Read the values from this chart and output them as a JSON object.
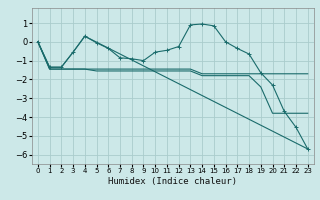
{
  "xlabel": "Humidex (Indice chaleur)",
  "bg_color": "#cce8e8",
  "grid_color": "#aacccc",
  "line_color": "#1a6b6b",
  "xlim": [
    -0.5,
    23.5
  ],
  "ylim": [
    -6.5,
    1.8
  ],
  "xticks": [
    0,
    1,
    2,
    3,
    4,
    5,
    6,
    7,
    8,
    9,
    10,
    11,
    12,
    13,
    14,
    15,
    16,
    17,
    18,
    19,
    20,
    21,
    22,
    23
  ],
  "yticks": [
    -6,
    -5,
    -4,
    -3,
    -2,
    -1,
    0,
    1
  ],
  "series": [
    {
      "x": [
        0,
        1,
        2,
        3,
        4,
        5,
        6,
        7,
        8,
        9,
        10,
        11,
        12,
        13,
        14,
        15,
        16,
        17,
        18,
        19,
        20,
        21,
        22,
        23
      ],
      "y": [
        0.0,
        -1.35,
        -1.35,
        -0.55,
        0.3,
        -0.05,
        -0.35,
        -0.85,
        -0.9,
        -1.0,
        -0.55,
        -0.45,
        -0.25,
        0.9,
        0.95,
        0.85,
        0.0,
        -0.35,
        -0.65,
        -1.65,
        -2.3,
        -3.7,
        -4.55,
        -5.7
      ],
      "marker": true
    },
    {
      "x": [
        0,
        1,
        2,
        3,
        4,
        23
      ],
      "y": [
        0.0,
        -1.35,
        -1.35,
        -0.55,
        0.3,
        -5.7
      ],
      "marker": false
    },
    {
      "x": [
        0,
        1,
        2,
        3,
        4,
        5,
        6,
        7,
        8,
        9,
        10,
        11,
        12,
        13,
        14,
        15,
        16,
        17,
        18,
        19,
        20,
        21,
        22,
        23
      ],
      "y": [
        0.0,
        -1.45,
        -1.45,
        -1.45,
        -1.45,
        -1.45,
        -1.45,
        -1.45,
        -1.45,
        -1.45,
        -1.45,
        -1.45,
        -1.45,
        -1.45,
        -1.7,
        -1.7,
        -1.7,
        -1.7,
        -1.7,
        -1.7,
        -1.7,
        -1.7,
        -1.7,
        -1.7
      ],
      "marker": false
    },
    {
      "x": [
        0,
        1,
        2,
        3,
        4,
        5,
        6,
        7,
        8,
        9,
        10,
        11,
        12,
        13,
        14,
        15,
        16,
        17,
        18,
        19,
        20,
        21,
        22,
        23
      ],
      "y": [
        0.0,
        -1.45,
        -1.45,
        -1.45,
        -1.45,
        -1.55,
        -1.55,
        -1.55,
        -1.55,
        -1.55,
        -1.55,
        -1.55,
        -1.55,
        -1.55,
        -1.8,
        -1.8,
        -1.8,
        -1.8,
        -1.8,
        -2.4,
        -3.8,
        -3.8,
        -3.8,
        -3.8
      ],
      "marker": false
    }
  ]
}
